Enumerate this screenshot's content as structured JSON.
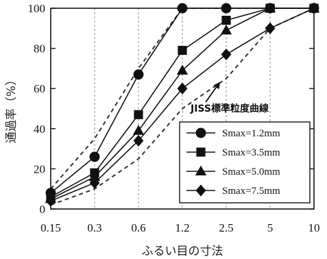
{
  "chart_data": {
    "type": "line",
    "x_scale": "categorical-log",
    "categories": [
      "0.15",
      "0.3",
      "0.6",
      "1.2",
      "2.5",
      "5",
      "10"
    ],
    "xlabel": "ふるい目の寸法",
    "ylabel": "通過率（%）",
    "ylim": [
      0,
      100
    ],
    "yticks": [
      0,
      20,
      40,
      60,
      80,
      100
    ],
    "grid": "vertical dashed",
    "legend_position": "bottom-right",
    "series": [
      {
        "name": "Smax=1.2mm",
        "marker": "circle",
        "values": [
          8,
          26,
          67,
          100,
          100,
          100,
          100
        ]
      },
      {
        "name": "Smax=3.5mm",
        "marker": "square",
        "values": [
          6,
          18,
          47,
          79,
          94,
          100,
          100
        ]
      },
      {
        "name": "Smax=5.0mm",
        "marker": "triangle",
        "values": [
          5,
          16,
          39,
          69,
          89,
          100,
          100
        ]
      },
      {
        "name": "Smax=7.5mm",
        "marker": "diamond",
        "values": [
          4,
          13,
          34,
          60,
          77,
          90,
          100
        ]
      }
    ],
    "reference_curves": {
      "annotation": "JISS標準粒度曲線",
      "upper": [
        10,
        35,
        70,
        100,
        100,
        100,
        100
      ],
      "lower": [
        2,
        10,
        25,
        50,
        65,
        90,
        100
      ]
    }
  }
}
